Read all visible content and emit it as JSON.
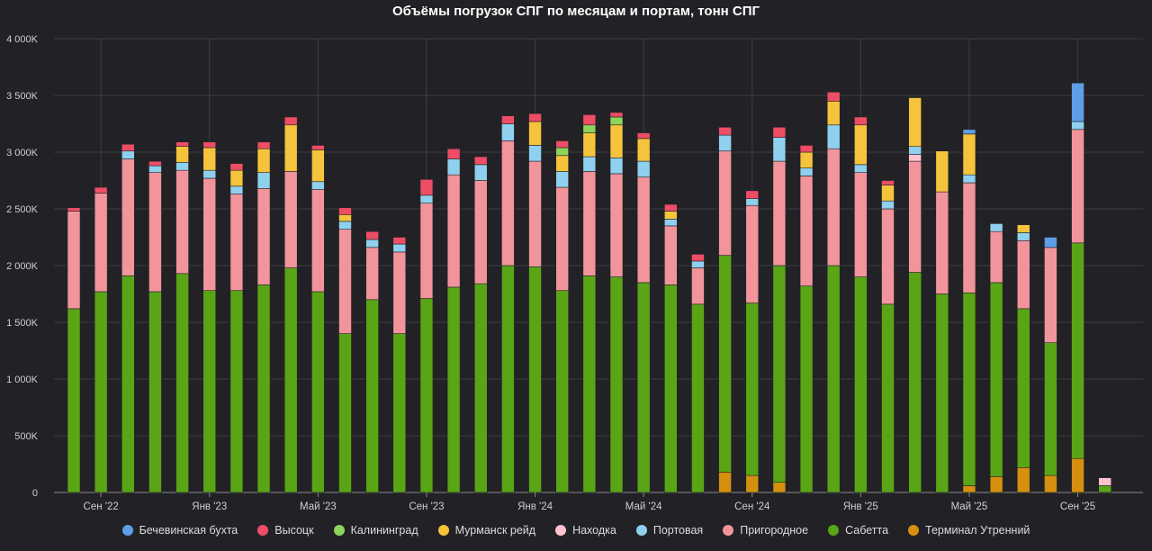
{
  "chart_data": {
    "type": "bar",
    "stacked": true,
    "title": "Объёмы погрузок СПГ по месяцам и портам, тонн СПГ",
    "xlabel": "",
    "ylabel": "",
    "ylim": [
      0,
      4000000
    ],
    "grid": true,
    "legend_position": "bottom",
    "y_ticks": [
      {
        "value": 0,
        "label": "0"
      },
      {
        "value": 500000,
        "label": "500K"
      },
      {
        "value": 1000000,
        "label": "1 000K"
      },
      {
        "value": 1500000,
        "label": "1 500K"
      },
      {
        "value": 2000000,
        "label": "2 000K"
      },
      {
        "value": 2500000,
        "label": "2 500K"
      },
      {
        "value": 3000000,
        "label": "3 000K"
      },
      {
        "value": 3500000,
        "label": "3 500K"
      },
      {
        "value": 4000000,
        "label": "4 000K"
      }
    ],
    "x_ticks": [
      {
        "index": 1,
        "label": "Сен '22"
      },
      {
        "index": 5,
        "label": "Янв '23"
      },
      {
        "index": 9,
        "label": "Май '23"
      },
      {
        "index": 13,
        "label": "Сен '23"
      },
      {
        "index": 17,
        "label": "Янв '24"
      },
      {
        "index": 21,
        "label": "Май '24"
      },
      {
        "index": 25,
        "label": "Сен '24"
      },
      {
        "index": 29,
        "label": "Янв '25"
      },
      {
        "index": 33,
        "label": "Май '25"
      },
      {
        "index": 37,
        "label": "Сен '25"
      }
    ],
    "categories": [
      "2022-08",
      "2022-09",
      "2022-10",
      "2022-11",
      "2022-12",
      "2023-01",
      "2023-02",
      "2023-03",
      "2023-04",
      "2023-05",
      "2023-06",
      "2023-07",
      "2023-08",
      "2023-09",
      "2023-10",
      "2023-11",
      "2023-12",
      "2024-01",
      "2024-02",
      "2024-03",
      "2024-04",
      "2024-05",
      "2024-06",
      "2024-07",
      "2024-08",
      "2024-09",
      "2024-10",
      "2024-11",
      "2024-12",
      "2025-01",
      "2025-02",
      "2025-03",
      "2025-04",
      "2025-05",
      "2025-06",
      "2025-07",
      "2025-08",
      "2025-09",
      "2025-10"
    ],
    "series": [
      {
        "name": "Терминал Утренний",
        "color": "#d4900e",
        "values": [
          0,
          0,
          0,
          0,
          0,
          0,
          0,
          0,
          0,
          0,
          0,
          0,
          0,
          0,
          0,
          0,
          0,
          0,
          0,
          0,
          0,
          0,
          0,
          0,
          180000,
          150000,
          90000,
          0,
          0,
          0,
          0,
          0,
          0,
          60000,
          140000,
          220000,
          150000,
          300000,
          0
        ]
      },
      {
        "name": "Сабетта",
        "color": "#5aa516",
        "values": [
          1620000,
          1770000,
          1910000,
          1770000,
          1930000,
          1780000,
          1780000,
          1830000,
          1980000,
          1770000,
          1400000,
          1700000,
          1400000,
          1710000,
          1810000,
          1840000,
          2000000,
          1990000,
          1780000,
          1910000,
          1900000,
          1850000,
          1830000,
          1660000,
          1910000,
          1520000,
          1910000,
          1820000,
          2000000,
          1900000,
          1660000,
          1940000,
          1750000,
          1700000,
          1710000,
          1400000,
          1170000,
          1900000,
          60000
        ]
      },
      {
        "name": "Пригородное",
        "color": "#f2949c",
        "values": [
          860000,
          870000,
          1030000,
          1050000,
          910000,
          990000,
          850000,
          850000,
          850000,
          900000,
          920000,
          460000,
          720000,
          840000,
          990000,
          910000,
          1100000,
          930000,
          910000,
          920000,
          910000,
          930000,
          520000,
          320000,
          920000,
          860000,
          920000,
          970000,
          1030000,
          920000,
          840000,
          980000,
          900000,
          970000,
          450000,
          600000,
          840000,
          1000000,
          0
        ]
      },
      {
        "name": "Находка",
        "color": "#ffc2d0",
        "values": [
          0,
          0,
          0,
          0,
          0,
          0,
          0,
          0,
          0,
          0,
          0,
          0,
          0,
          0,
          0,
          0,
          0,
          0,
          0,
          0,
          0,
          0,
          0,
          0,
          0,
          0,
          0,
          0,
          0,
          0,
          0,
          60000,
          0,
          0,
          0,
          0,
          0,
          0,
          70000
        ]
      },
      {
        "name": "Портовая",
        "color": "#8fd0ef",
        "values": [
          0,
          0,
          70000,
          60000,
          70000,
          70000,
          70000,
          140000,
          0,
          70000,
          70000,
          70000,
          70000,
          70000,
          140000,
          140000,
          150000,
          140000,
          140000,
          130000,
          140000,
          140000,
          60000,
          60000,
          140000,
          60000,
          210000,
          70000,
          210000,
          70000,
          70000,
          70000,
          0,
          70000,
          70000,
          70000,
          0,
          70000,
          0
        ]
      },
      {
        "name": "Мурманск рейд",
        "color": "#f5c43c",
        "values": [
          0,
          0,
          0,
          0,
          140000,
          200000,
          140000,
          210000,
          410000,
          280000,
          60000,
          0,
          0,
          0,
          0,
          0,
          0,
          210000,
          140000,
          210000,
          290000,
          200000,
          70000,
          0,
          0,
          0,
          0,
          140000,
          210000,
          350000,
          140000,
          430000,
          360000,
          360000,
          0,
          70000,
          0,
          0,
          0
        ]
      },
      {
        "name": "Калининград",
        "color": "#8cd45a",
        "values": [
          0,
          0,
          0,
          0,
          0,
          0,
          0,
          0,
          0,
          0,
          0,
          0,
          0,
          0,
          0,
          0,
          0,
          0,
          70000,
          70000,
          70000,
          0,
          0,
          0,
          0,
          0,
          0,
          0,
          0,
          0,
          0,
          0,
          0,
          0,
          0,
          0,
          0,
          0,
          0
        ]
      },
      {
        "name": "Высоцк",
        "color": "#ee4d66",
        "values": [
          30000,
          50000,
          60000,
          40000,
          40000,
          50000,
          60000,
          60000,
          70000,
          40000,
          60000,
          70000,
          60000,
          140000,
          90000,
          70000,
          70000,
          70000,
          60000,
          90000,
          40000,
          50000,
          60000,
          60000,
          70000,
          70000,
          90000,
          60000,
          80000,
          70000,
          40000,
          0,
          0,
          0,
          0,
          0,
          0,
          0,
          0
        ]
      },
      {
        "name": "Бечевинская бухта",
        "color": "#5e9ee8",
        "values": [
          0,
          0,
          0,
          0,
          0,
          0,
          0,
          0,
          0,
          0,
          0,
          0,
          0,
          0,
          0,
          0,
          0,
          0,
          0,
          0,
          0,
          0,
          0,
          0,
          0,
          0,
          0,
          0,
          0,
          0,
          0,
          0,
          0,
          40000,
          0,
          0,
          90000,
          340000,
          0
        ]
      }
    ]
  },
  "legend": {
    "items": [
      {
        "label": "Бечевинская бухта",
        "color": "#5e9ee8"
      },
      {
        "label": "Высоцк",
        "color": "#ee4d66"
      },
      {
        "label": "Калининград",
        "color": "#8cd45a"
      },
      {
        "label": "Мурманск рейд",
        "color": "#f5c43c"
      },
      {
        "label": "Находка",
        "color": "#ffc2d0"
      },
      {
        "label": "Портовая",
        "color": "#8fd0ef"
      },
      {
        "label": "Пригородное",
        "color": "#f2949c"
      },
      {
        "label": "Сабетта",
        "color": "#5aa516"
      },
      {
        "label": "Терминал Утренний",
        "color": "#d4900e"
      }
    ]
  }
}
